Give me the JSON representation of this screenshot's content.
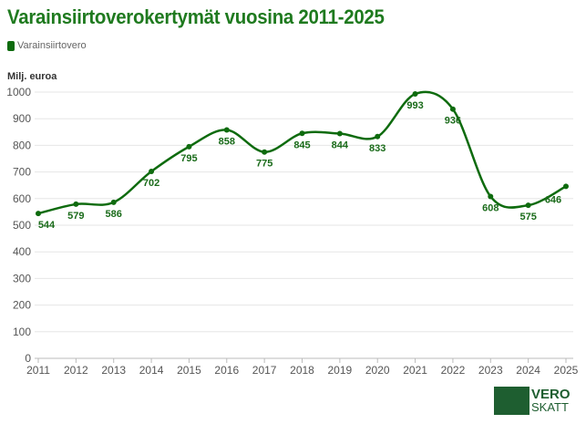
{
  "chart_data": {
    "type": "line",
    "title": "Varainsiirtoverokertymät vuosina 2011-2025",
    "ylabel": "Milj. euroa",
    "xlabel": "",
    "x": [
      2011,
      2012,
      2013,
      2014,
      2015,
      2016,
      2017,
      2018,
      2019,
      2020,
      2021,
      2022,
      2023,
      2024,
      2025
    ],
    "series": [
      {
        "name": "Varainsiirtovero",
        "values": [
          544,
          579,
          586,
          702,
          795,
          858,
          775,
          845,
          844,
          833,
          993,
          936,
          608,
          575,
          646
        ]
      }
    ],
    "ylim": [
      0,
      1000
    ],
    "yticks": [
      0,
      100,
      200,
      300,
      400,
      500,
      600,
      700,
      800,
      900,
      1000
    ],
    "grid": true,
    "legend": "top-left",
    "color": "#0e6b0e"
  },
  "logo": {
    "line1": "VERO",
    "line2": "SKATT"
  }
}
